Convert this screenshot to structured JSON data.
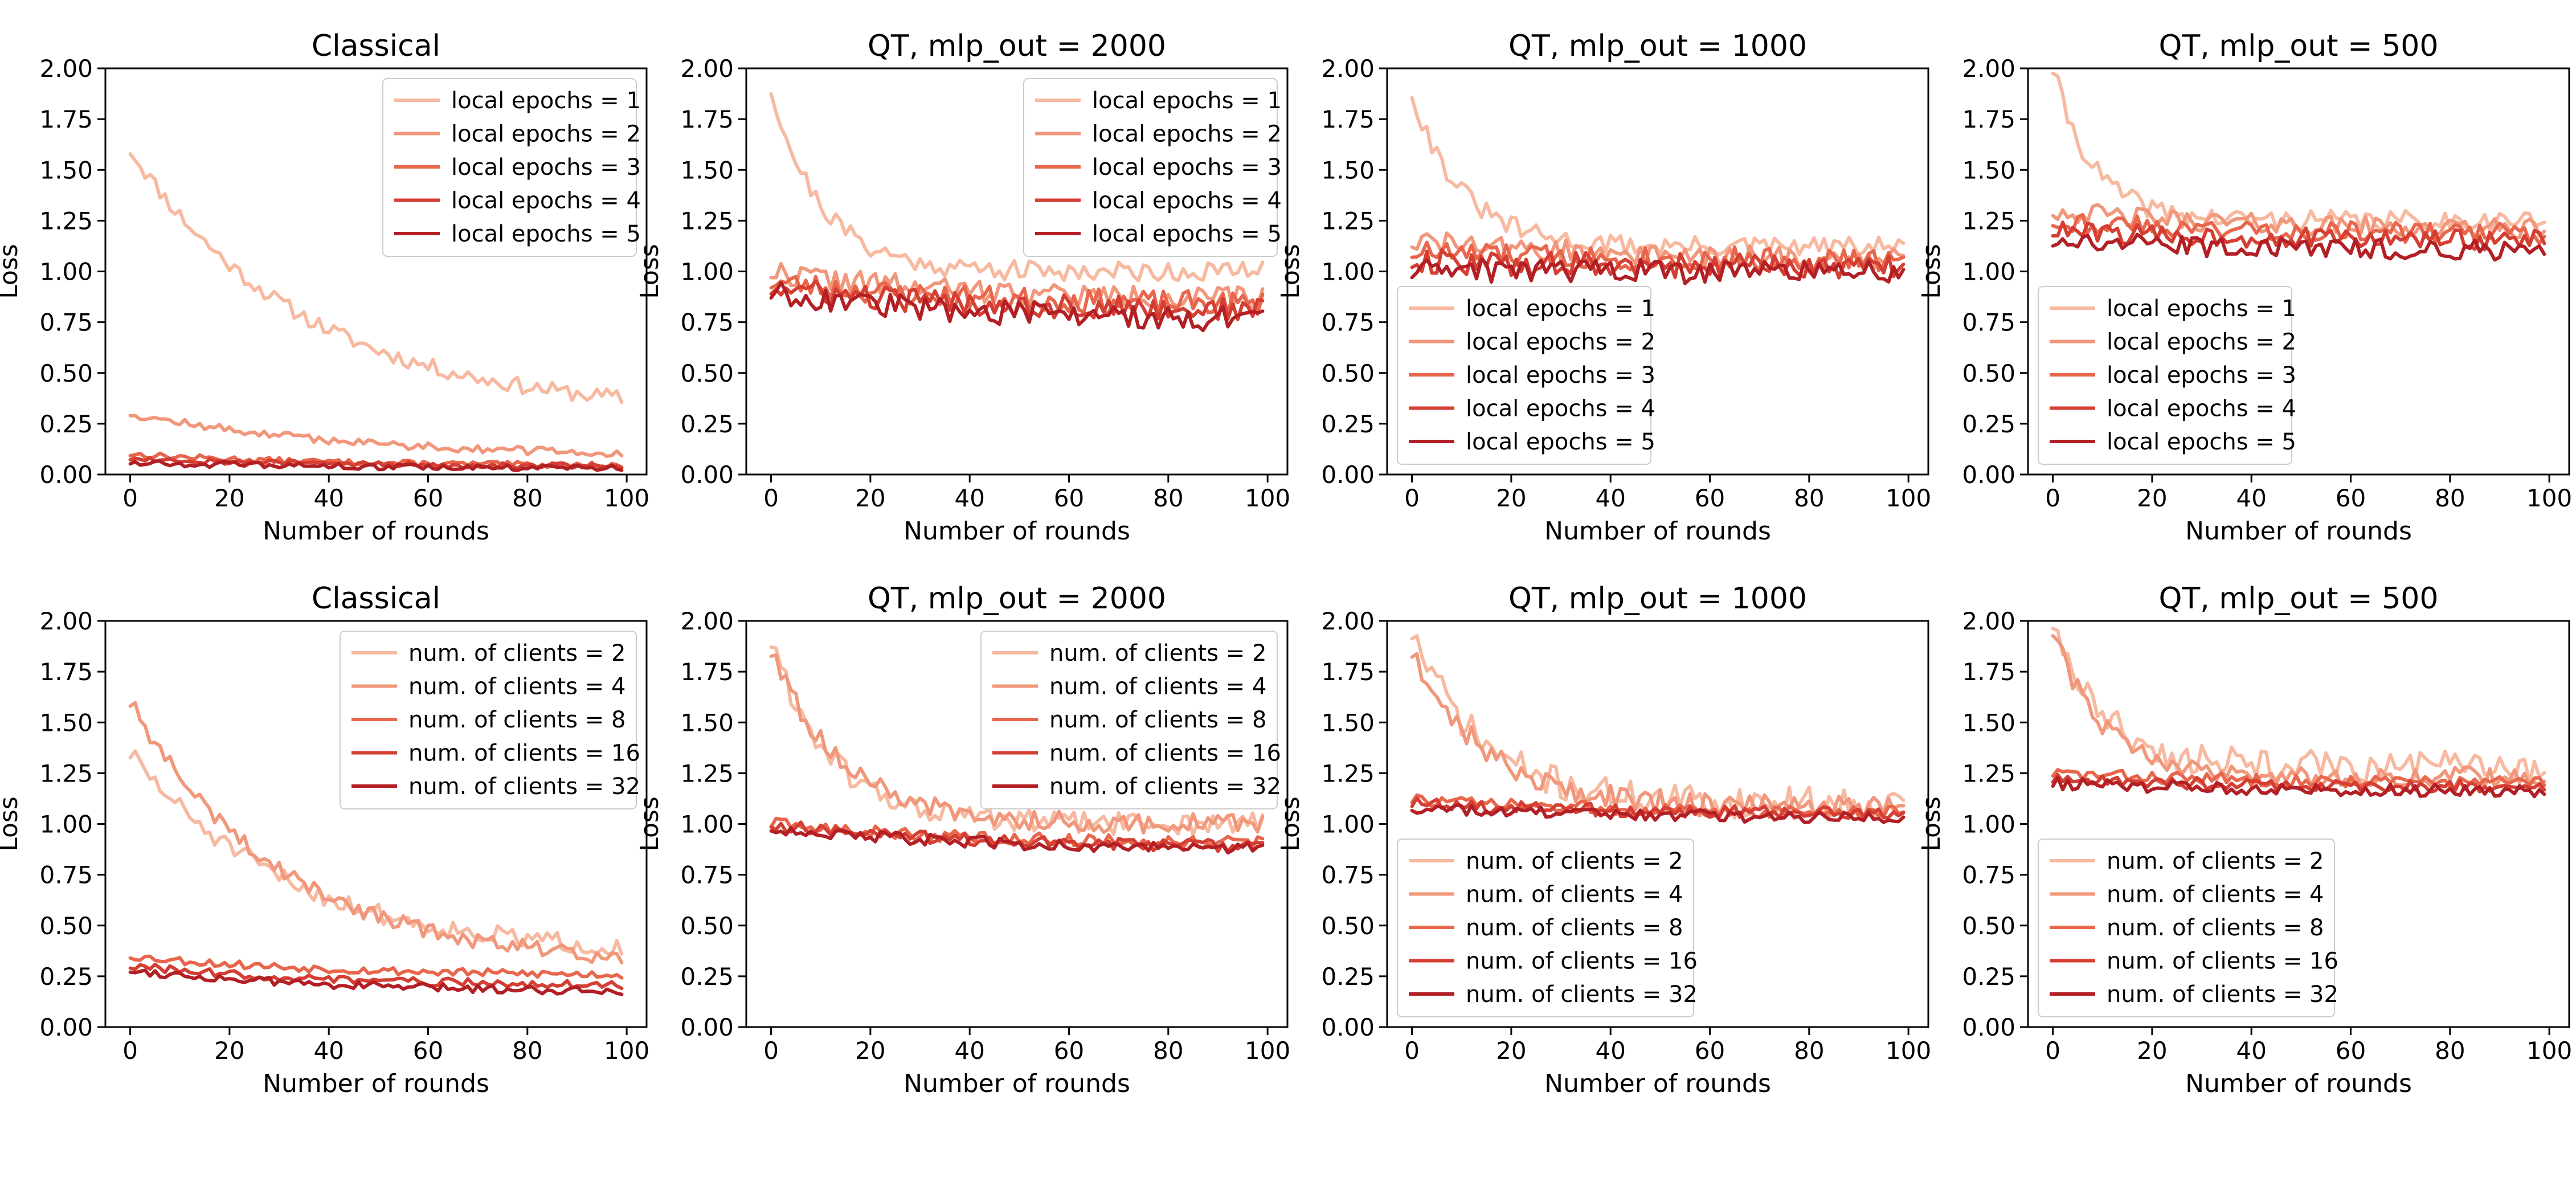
{
  "figure": {
    "xlabel": "Number of rounds",
    "ylabel": "Loss",
    "ylim": [
      0,
      2
    ],
    "xlim": [
      -5,
      104
    ],
    "xticks": [
      0,
      20,
      40,
      60,
      80,
      100
    ],
    "yticks": [
      0.0,
      0.25,
      0.5,
      0.75,
      1.0,
      1.25,
      1.5,
      1.75,
      2.0
    ],
    "ytick_labels": [
      "0.00",
      "0.25",
      "0.50",
      "0.75",
      "1.00",
      "1.25",
      "1.50",
      "1.75",
      "2.00"
    ],
    "colors": [
      "#f7b9a0",
      "#f1977b",
      "#e8664c",
      "#d53e33",
      "#b21f24"
    ]
  },
  "chart_data": [
    {
      "type": "line",
      "title": "Classical",
      "xlabel": "Number of rounds",
      "ylabel": "Loss",
      "ylim": [
        0,
        2
      ],
      "legend_loc": "upper-right",
      "series": [
        {
          "name": "local epochs = 1",
          "start": 1.6,
          "end": 0.3,
          "tau": 35,
          "noise": 0.04,
          "seed": 11
        },
        {
          "name": "local epochs = 2",
          "start": 0.3,
          "end": 0.08,
          "tau": 45,
          "noise": 0.02,
          "seed": 12
        },
        {
          "name": "local epochs = 3",
          "start": 0.1,
          "end": 0.04,
          "tau": 40,
          "noise": 0.015,
          "seed": 13
        },
        {
          "name": "local epochs = 4",
          "start": 0.08,
          "end": 0.04,
          "tau": 40,
          "noise": 0.015,
          "seed": 14
        },
        {
          "name": "local epochs = 5",
          "start": 0.06,
          "end": 0.03,
          "tau": 40,
          "noise": 0.015,
          "seed": 15
        }
      ]
    },
    {
      "type": "line",
      "title": "QT, mlp_out = 2000",
      "xlabel": "Number of rounds",
      "ylabel": "Loss",
      "ylim": [
        0,
        2
      ],
      "legend_loc": "upper-right",
      "series": [
        {
          "name": "local epochs = 1",
          "start": 1.9,
          "end": 1.0,
          "tau": 10,
          "noise": 0.05,
          "seed": 21
        },
        {
          "name": "local epochs = 2",
          "start": 1.0,
          "end": 0.85,
          "tau": 40,
          "noise": 0.06,
          "seed": 22
        },
        {
          "name": "local epochs = 3",
          "start": 0.95,
          "end": 0.83,
          "tau": 40,
          "noise": 0.06,
          "seed": 23
        },
        {
          "name": "local epochs = 4",
          "start": 0.92,
          "end": 0.8,
          "tau": 40,
          "noise": 0.06,
          "seed": 24
        },
        {
          "name": "local epochs = 5",
          "start": 0.9,
          "end": 0.75,
          "tau": 40,
          "noise": 0.06,
          "seed": 25
        }
      ]
    },
    {
      "type": "line",
      "title": "QT, mlp_out = 1000",
      "xlabel": "Number of rounds",
      "ylabel": "Loss",
      "ylim": [
        0,
        2
      ],
      "legend_loc": "lower-left",
      "series": [
        {
          "name": "local epochs = 1",
          "start": 1.88,
          "end": 1.12,
          "tau": 10,
          "noise": 0.05,
          "seed": 31
        },
        {
          "name": "local epochs = 2",
          "start": 1.15,
          "end": 1.05,
          "tau": 40,
          "noise": 0.06,
          "seed": 32
        },
        {
          "name": "local epochs = 3",
          "start": 1.1,
          "end": 1.05,
          "tau": 40,
          "noise": 0.06,
          "seed": 33
        },
        {
          "name": "local epochs = 4",
          "start": 1.05,
          "end": 1.02,
          "tau": 40,
          "noise": 0.06,
          "seed": 34
        },
        {
          "name": "local epochs = 5",
          "start": 1.0,
          "end": 1.0,
          "tau": 40,
          "noise": 0.06,
          "seed": 35
        }
      ]
    },
    {
      "type": "line",
      "title": "QT, mlp_out = 500",
      "xlabel": "Number of rounds",
      "ylabel": "Loss",
      "ylim": [
        0,
        2
      ],
      "legend_loc": "lower-left",
      "series": [
        {
          "name": "local epochs = 1",
          "start": 2.0,
          "end": 1.25,
          "tau": 8,
          "noise": 0.05,
          "seed": 41
        },
        {
          "name": "local epochs = 2",
          "start": 1.3,
          "end": 1.2,
          "tau": 40,
          "noise": 0.05,
          "seed": 42
        },
        {
          "name": "local epochs = 3",
          "start": 1.25,
          "end": 1.18,
          "tau": 40,
          "noise": 0.05,
          "seed": 43
        },
        {
          "name": "local epochs = 4",
          "start": 1.2,
          "end": 1.15,
          "tau": 40,
          "noise": 0.05,
          "seed": 44
        },
        {
          "name": "local epochs = 5",
          "start": 1.15,
          "end": 1.1,
          "tau": 40,
          "noise": 0.05,
          "seed": 45
        }
      ]
    },
    {
      "type": "line",
      "title": "Classical",
      "xlabel": "Number of rounds",
      "ylabel": "Loss",
      "ylim": [
        0,
        2
      ],
      "legend_loc": "upper-right",
      "series": [
        {
          "name": "num. of clients = 2",
          "start": 1.35,
          "end": 0.35,
          "tau": 32,
          "noise": 0.05,
          "seed": 51
        },
        {
          "name": "num. of clients = 4",
          "start": 1.6,
          "end": 0.3,
          "tau": 30,
          "noise": 0.04,
          "seed": 52
        },
        {
          "name": "num. of clients = 8",
          "start": 0.35,
          "end": 0.25,
          "tau": 40,
          "noise": 0.02,
          "seed": 53
        },
        {
          "name": "num. of clients = 16",
          "start": 0.3,
          "end": 0.2,
          "tau": 40,
          "noise": 0.02,
          "seed": 54
        },
        {
          "name": "num. of clients = 32",
          "start": 0.28,
          "end": 0.17,
          "tau": 40,
          "noise": 0.02,
          "seed": 55
        }
      ]
    },
    {
      "type": "line",
      "title": "QT, mlp_out = 2000",
      "xlabel": "Number of rounds",
      "ylabel": "Loss",
      "ylim": [
        0,
        2
      ],
      "legend_loc": "upper-right",
      "series": [
        {
          "name": "num. of clients = 2",
          "start": 1.9,
          "end": 1.0,
          "tau": 12,
          "noise": 0.06,
          "seed": 61
        },
        {
          "name": "num. of clients = 4",
          "start": 1.85,
          "end": 1.0,
          "tau": 14,
          "noise": 0.05,
          "seed": 62
        },
        {
          "name": "num. of clients = 8",
          "start": 1.0,
          "end": 0.9,
          "tau": 40,
          "noise": 0.03,
          "seed": 63
        },
        {
          "name": "num. of clients = 16",
          "start": 1.0,
          "end": 0.88,
          "tau": 40,
          "noise": 0.03,
          "seed": 64
        },
        {
          "name": "num. of clients = 32",
          "start": 0.98,
          "end": 0.87,
          "tau": 40,
          "noise": 0.03,
          "seed": 65
        }
      ]
    },
    {
      "type": "line",
      "title": "QT, mlp_out = 1000",
      "xlabel": "Number of rounds",
      "ylabel": "Loss",
      "ylim": [
        0,
        2
      ],
      "legend_loc": "lower-left",
      "series": [
        {
          "name": "num. of clients = 2",
          "start": 1.95,
          "end": 1.1,
          "tau": 14,
          "noise": 0.08,
          "seed": 71
        },
        {
          "name": "num. of clients = 4",
          "start": 1.85,
          "end": 1.08,
          "tau": 15,
          "noise": 0.06,
          "seed": 72
        },
        {
          "name": "num. of clients = 8",
          "start": 1.12,
          "end": 1.05,
          "tau": 40,
          "noise": 0.03,
          "seed": 73
        },
        {
          "name": "num. of clients = 16",
          "start": 1.1,
          "end": 1.05,
          "tau": 40,
          "noise": 0.03,
          "seed": 74
        },
        {
          "name": "num. of clients = 32",
          "start": 1.08,
          "end": 1.03,
          "tau": 40,
          "noise": 0.03,
          "seed": 75
        }
      ]
    },
    {
      "type": "line",
      "title": "QT, mlp_out = 500",
      "xlabel": "Number of rounds",
      "ylabel": "Loss",
      "ylim": [
        0,
        2
      ],
      "legend_loc": "lower-left",
      "series": [
        {
          "name": "num. of clients = 2",
          "start": 2.0,
          "end": 1.28,
          "tau": 10,
          "noise": 0.08,
          "seed": 81
        },
        {
          "name": "num. of clients = 4",
          "start": 1.95,
          "end": 1.23,
          "tau": 10,
          "noise": 0.05,
          "seed": 82
        },
        {
          "name": "num. of clients = 8",
          "start": 1.25,
          "end": 1.2,
          "tau": 40,
          "noise": 0.03,
          "seed": 83
        },
        {
          "name": "num. of clients = 16",
          "start": 1.22,
          "end": 1.18,
          "tau": 40,
          "noise": 0.03,
          "seed": 84
        },
        {
          "name": "num. of clients = 32",
          "start": 1.2,
          "end": 1.16,
          "tau": 40,
          "noise": 0.03,
          "seed": 85
        }
      ]
    }
  ]
}
